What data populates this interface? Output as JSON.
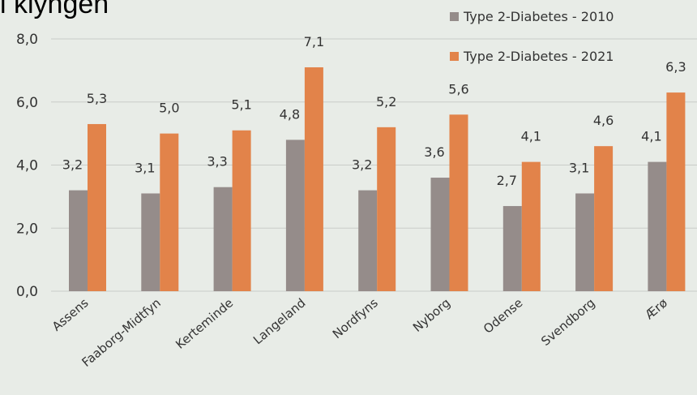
{
  "chart_data": {
    "type": "bar",
    "title": "i klyngen",
    "categories": [
      "Assens",
      "Faaborg-Midtfyn",
      "Kerteminde",
      "Langeland",
      "Nordfyns",
      "Nyborg",
      "Odense",
      "Svendborg",
      "Ærø"
    ],
    "series": [
      {
        "name": "Type 2-Diabetes - 2010",
        "values": [
          3.2,
          3.1,
          3.3,
          4.8,
          3.2,
          3.6,
          2.7,
          3.1,
          4.1
        ],
        "color": "#958c8a"
      },
      {
        "name": "Type 2-Diabetes - 2021",
        "values": [
          5.3,
          5.0,
          5.1,
          7.1,
          5.2,
          5.6,
          4.1,
          4.6,
          6.3
        ],
        "color": "#e2834a"
      }
    ],
    "data_labels": {
      "s2010": [
        "3,2",
        "3,1",
        "3,3",
        "4,8",
        "3,2",
        "3,6",
        "2,7",
        "3,1",
        "4,1"
      ],
      "s2021": [
        "5,3",
        "5,0",
        "5,1",
        "7,1",
        "5,2",
        "5,6",
        "4,1",
        "4,6",
        "6,3"
      ]
    },
    "yticks": [
      "0,0",
      "2,0",
      "4,0",
      "6,0",
      "8,0"
    ],
    "ylim": [
      0,
      8
    ],
    "grid": true,
    "legend_position": "top-right"
  }
}
